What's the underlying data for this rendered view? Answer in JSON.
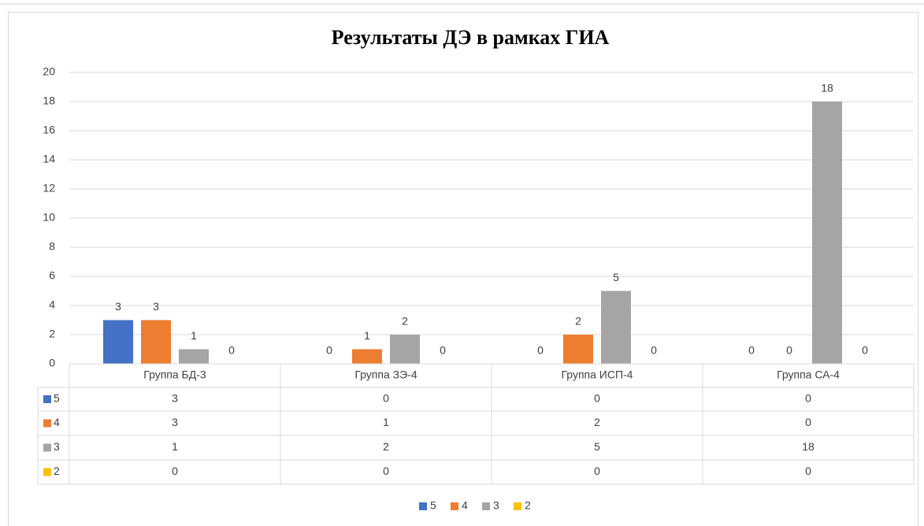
{
  "chart_data": {
    "type": "bar",
    "title": "Результаты ДЭ в рамках ГИА",
    "categories": [
      "Группа БД-3",
      "Группа ЗЭ-4",
      "Группа ИСП-4",
      "Группа СА-4"
    ],
    "series": [
      {
        "name": "5",
        "color": "#4472c4",
        "values": [
          3,
          0,
          0,
          0
        ]
      },
      {
        "name": "4",
        "color": "#ed7d31",
        "values": [
          3,
          1,
          2,
          0
        ]
      },
      {
        "name": "3",
        "color": "#a5a5a5",
        "values": [
          1,
          2,
          5,
          18
        ]
      },
      {
        "name": "2",
        "color": "#ffc000",
        "values": [
          0,
          0,
          0,
          0
        ]
      }
    ],
    "ylim": [
      0,
      20
    ],
    "yticks": [
      0,
      2,
      4,
      6,
      8,
      10,
      12,
      14,
      16,
      18,
      20
    ],
    "grid": true,
    "legend": "bottom",
    "data_table": true
  }
}
